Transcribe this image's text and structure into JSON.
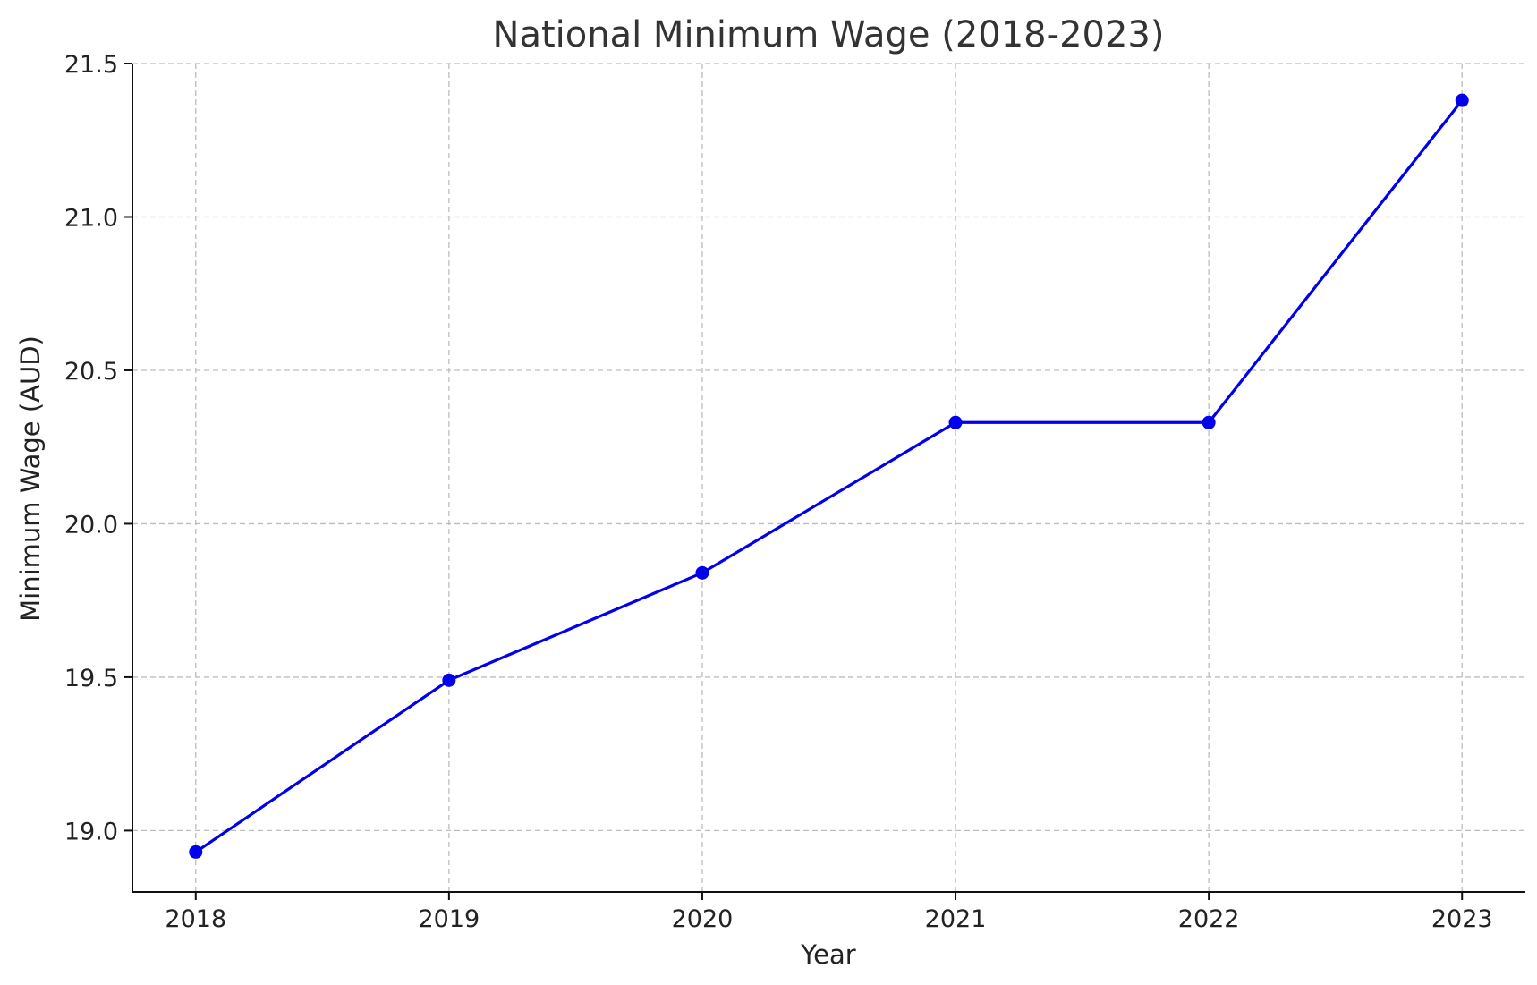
{
  "chart_data": {
    "type": "line",
    "title": "National Minimum Wage (2018-2023)",
    "xlabel": "Year",
    "ylabel": "Minimum Wage (AUD)",
    "x": [
      2018,
      2019,
      2020,
      2021,
      2022,
      2023
    ],
    "x_tick_labels": [
      "2018",
      "2019",
      "2020",
      "2021",
      "2022",
      "2023"
    ],
    "y_ticks": [
      19.0,
      19.5,
      20.0,
      20.5,
      21.0,
      21.5
    ],
    "y_tick_labels": [
      "19.0",
      "19.5",
      "20.0",
      "20.5",
      "21.0",
      "21.5"
    ],
    "ylim": [
      18.8,
      21.5
    ],
    "xlim": [
      2017.75,
      2023.25
    ],
    "grid": true,
    "legend": "none",
    "series": [
      {
        "values": [
          18.93,
          19.49,
          19.84,
          20.33,
          20.33,
          21.38
        ],
        "color": "#0000ee",
        "marker": "circle"
      }
    ]
  }
}
